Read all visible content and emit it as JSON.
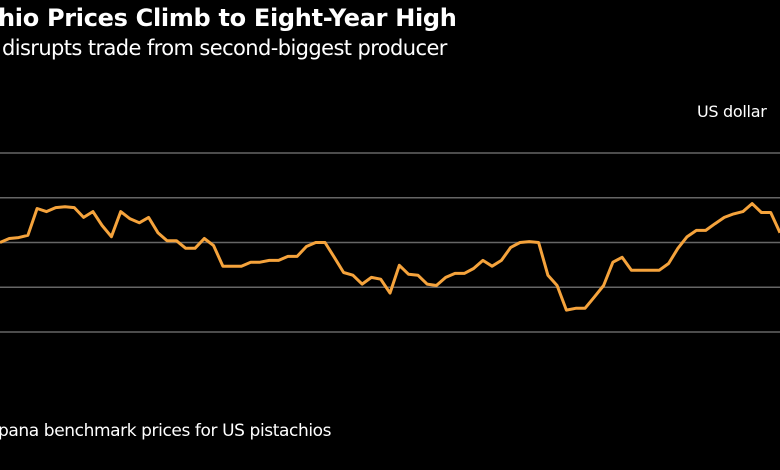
{
  "title": "hio Prices Climb to Eight-Year High",
  "subtitle": " disrupts trade from second-biggest producer",
  "unit_label": "US dollar",
  "source_note": "pana benchmark prices for US pistachios",
  "colors": {
    "background": "#000000",
    "line": "#f5a33c",
    "grid": "#666666",
    "text": "#ffffff"
  },
  "chart_data": {
    "type": "line",
    "title": "hio Prices Climb to Eight-Year High",
    "ylabel": "US dollar",
    "grid": true,
    "gridlines": [
      0,
      1,
      2,
      3,
      4
    ],
    "ylim": [
      0,
      4
    ],
    "y_unit_note": "no tick labels visible; values expressed in gridline steps above the lowest gridline",
    "series": [
      {
        "values": [
          2.0,
          2.09,
          2.11,
          2.16,
          2.76,
          2.69,
          2.78,
          2.8,
          2.78,
          2.56,
          2.69,
          2.38,
          2.13,
          2.69,
          2.53,
          2.44,
          2.56,
          2.22,
          2.04,
          2.04,
          1.87,
          1.87,
          2.09,
          1.93,
          1.47,
          1.47,
          1.47,
          1.56,
          1.56,
          1.6,
          1.6,
          1.69,
          1.69,
          1.91,
          2.0,
          2.0,
          1.67,
          1.33,
          1.27,
          1.07,
          1.22,
          1.18,
          0.87,
          1.49,
          1.29,
          1.27,
          1.07,
          1.04,
          1.22,
          1.31,
          1.31,
          1.42,
          1.6,
          1.47,
          1.6,
          1.89,
          2.0,
          2.02,
          2.0,
          1.27,
          1.04,
          0.49,
          0.53,
          0.53,
          0.78,
          1.04,
          1.56,
          1.67,
          1.38,
          1.38,
          1.38,
          1.38,
          1.53,
          1.87,
          2.13,
          2.27,
          2.27,
          2.42,
          2.56,
          2.64,
          2.69,
          2.87,
          2.67,
          2.67,
          2.22
        ]
      }
    ]
  }
}
